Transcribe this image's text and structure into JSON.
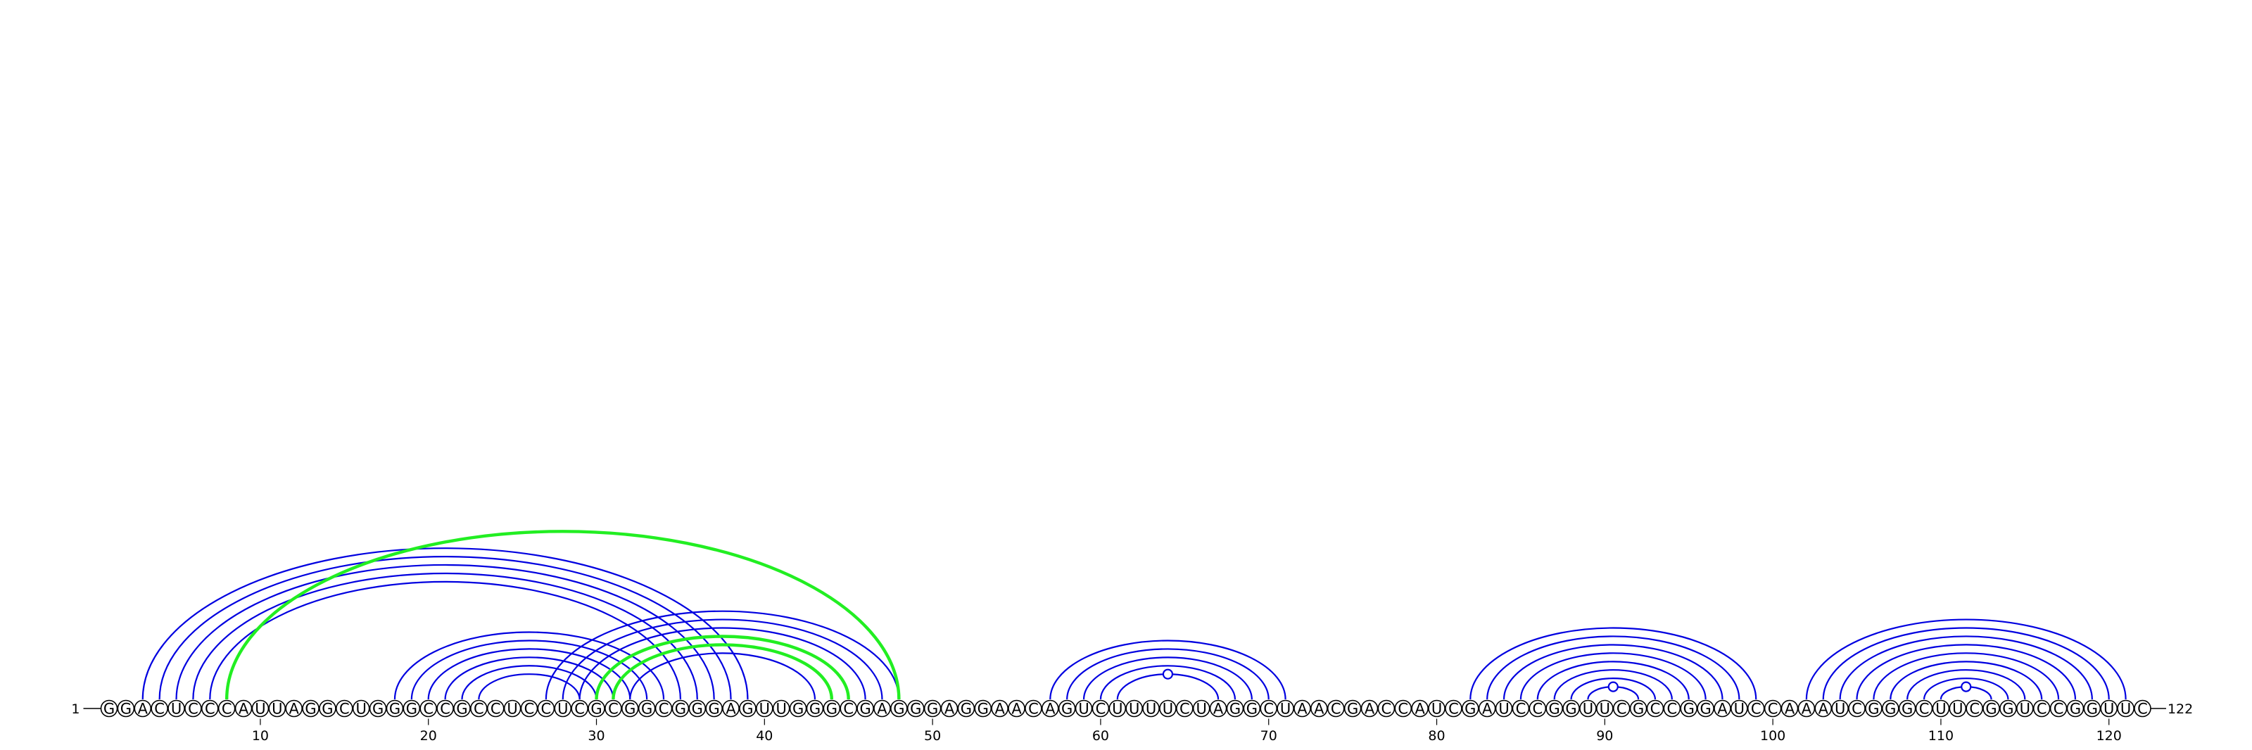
{
  "diagram": {
    "type": "rna-arc-diagram",
    "sequence": "GGACUCCCAUUAGGCUGGGCCGCCUCCUCGCGGCGGGAGUUGGGCGAGGGAGGAACAGUCUUUUCUAGGCUAACGACCAUCGAUCCGGUUCGCCGGAUCCAAAUCGGGCUUCGGUCCGGUUC",
    "start_label": "1",
    "end_label": "122",
    "tick_positions": [
      10,
      20,
      30,
      40,
      50,
      60,
      70,
      80,
      90,
      100,
      110,
      120
    ],
    "colors": {
      "helix": "#0000e0",
      "pseudoknot": "#22ee22",
      "nucleotide_outline": "#000000"
    },
    "helices": [
      {
        "color": "helix",
        "i": 3,
        "j": 39,
        "length": 5
      },
      {
        "color": "helix",
        "i": 18,
        "j": 34,
        "length": 6
      },
      {
        "color": "helix",
        "i": 27,
        "j": 48,
        "length": 6
      },
      {
        "color": "pseudoknot",
        "i": 8,
        "j": 48,
        "length": 1
      },
      {
        "color": "pseudoknot",
        "i": 30,
        "j": 45,
        "length": 2
      },
      {
        "color": "helix",
        "i": 57,
        "j": 71,
        "length": 5
      },
      {
        "color": "helix",
        "i": 82,
        "j": 99,
        "length": 8
      },
      {
        "color": "helix",
        "i": 102,
        "j": 121,
        "length": 9
      }
    ],
    "hairpin_loops": [
      64,
      90.5,
      111.5
    ]
  }
}
